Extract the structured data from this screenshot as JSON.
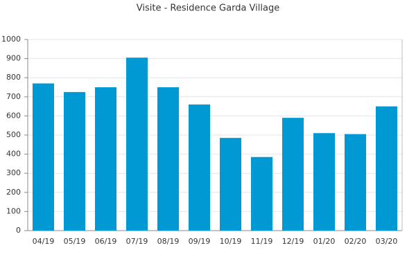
{
  "chart_data": {
    "type": "bar",
    "title": "Visite - Residence Garda Village",
    "categories": [
      "04/19",
      "05/19",
      "06/19",
      "07/19",
      "08/19",
      "09/19",
      "10/19",
      "11/19",
      "12/19",
      "01/20",
      "02/20",
      "03/20"
    ],
    "values": [
      770,
      725,
      750,
      905,
      750,
      660,
      485,
      385,
      590,
      510,
      505,
      650
    ],
    "color": "#0099d4",
    "ylim": [
      0,
      1000
    ],
    "yticks": [
      0,
      100,
      200,
      300,
      400,
      500,
      600,
      700,
      800,
      900,
      1000
    ],
    "grid": true
  }
}
